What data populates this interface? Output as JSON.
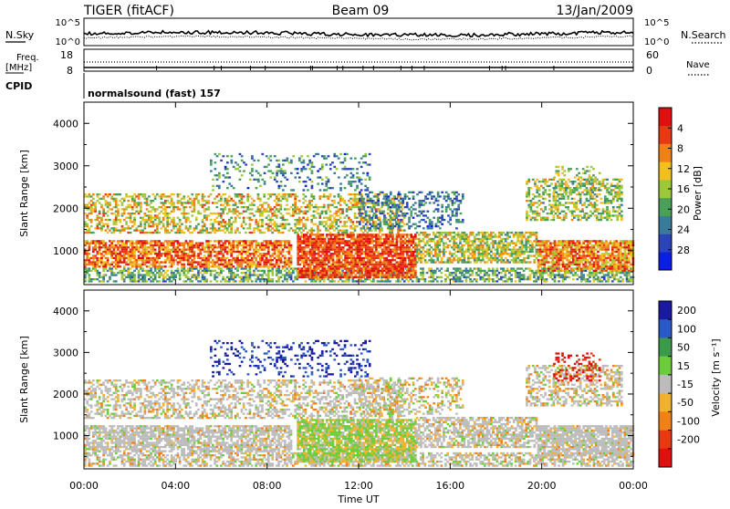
{
  "header": {
    "radar": "TIGER (fitACF)",
    "beam": "Beam 09",
    "date": "13/Jan/2009"
  },
  "top_panels": {
    "nsky_label": "N.Sky",
    "nsky_ticks": [
      "10^5",
      "10^0"
    ],
    "nsearch_label": "N.Search",
    "nsearch_ticks": [
      "10^5",
      "10^0"
    ],
    "freq_label": "Freq.",
    "freq_unit": "[MHz]",
    "freq_ticks": [
      "18",
      "8"
    ],
    "nave_label": "Nave",
    "nave_ticks": [
      "60",
      "0"
    ],
    "cpid_label": "CPID",
    "cpid_text": "normalsound (fast) 157"
  },
  "chart_data": [
    {
      "type": "heatmap",
      "name": "power",
      "ylabel": "Slant Range [km]",
      "yticks": [
        1000,
        2000,
        3000,
        4000
      ],
      "ylim": [
        200,
        4500
      ],
      "xlim": [
        0,
        24
      ],
      "colorbar": {
        "label": "Power [dB]",
        "ticks": [
          "4",
          "8",
          "12",
          "16",
          "20",
          "24",
          "28"
        ],
        "colors": [
          "#0a1ee6",
          "#2b45b8",
          "#3a7a9a",
          "#4aa05a",
          "#9cc83a",
          "#f0c020",
          "#f08018",
          "#e83a12",
          "#e01010"
        ]
      }
    },
    {
      "type": "heatmap",
      "name": "velocity",
      "ylabel": "Slant Range [km]",
      "yticks": [
        1000,
        2000,
        3000,
        4000
      ],
      "ylim": [
        200,
        4500
      ],
      "xlim": [
        0,
        24
      ],
      "xticks": [
        "00:00",
        "04:00",
        "08:00",
        "12:00",
        "16:00",
        "20:00",
        "00:00"
      ],
      "xlabel": "Time UT",
      "colorbar": {
        "label": "Velocity [m s⁻¹]",
        "ticks": [
          "200",
          "100",
          "50",
          "15",
          "-15",
          "-50",
          "-100",
          "-200"
        ],
        "colors": [
          "#1a1aa0",
          "#2a5ac8",
          "#3a9a4a",
          "#6ccc3a",
          "#bcbcbc",
          "#f0b030",
          "#f08018",
          "#e83a12",
          "#e01010"
        ]
      }
    }
  ],
  "colors": {
    "ground_scatter": "#bcbcbc"
  }
}
